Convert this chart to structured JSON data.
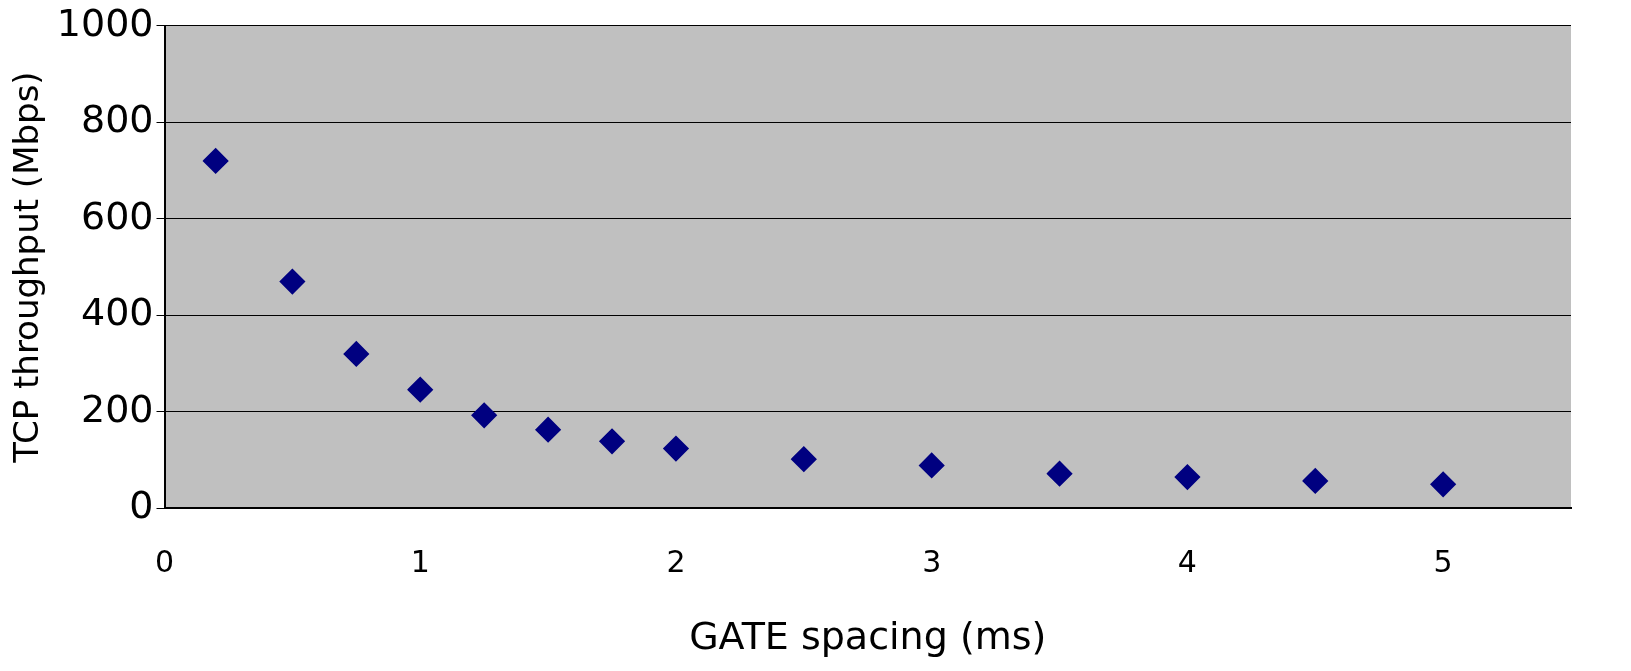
{
  "chart_data": {
    "type": "scatter",
    "xlabel": "GATE spacing (ms)",
    "ylabel": "TCP throughput (Mbps)",
    "x": [
      0.2,
      0.5,
      0.75,
      1,
      1.25,
      1.5,
      1.75,
      2,
      2.5,
      3,
      3.5,
      4,
      4.5,
      5
    ],
    "series": [
      {
        "color": "#000080",
        "values": [
          720,
          470,
          320,
          246,
          193,
          163,
          139,
          124,
          102,
          89,
          72,
          65,
          57,
          50
        ]
      }
    ],
    "xlim": [
      0,
      5.5
    ],
    "xticks": [
      0,
      1,
      2,
      3,
      4,
      5
    ],
    "ylim": [
      0,
      1000
    ],
    "yticks": [
      0,
      200,
      400,
      600,
      800,
      1000
    ],
    "grid": "y",
    "legend": false,
    "marker": "diamond"
  }
}
